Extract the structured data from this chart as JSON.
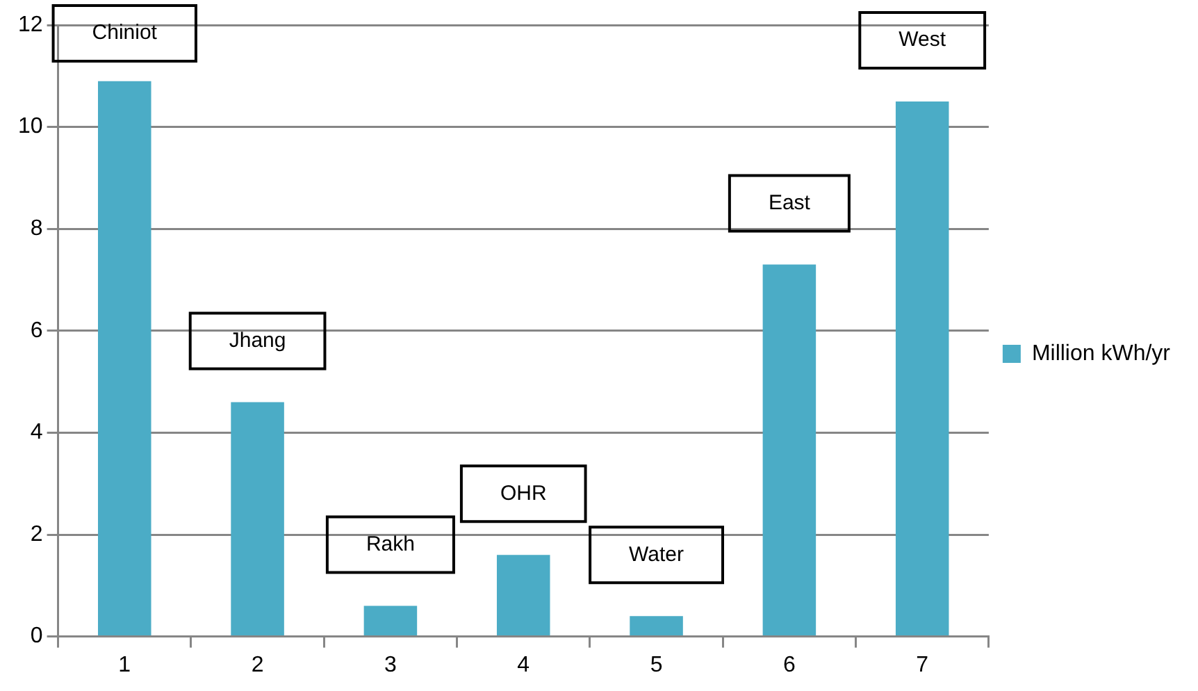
{
  "chart_data": {
    "type": "bar",
    "categories": [
      "1",
      "2",
      "3",
      "4",
      "5",
      "6",
      "7"
    ],
    "series": [
      {
        "name": "Million kWh/yr",
        "color": "#4bacc6",
        "values": [
          10.9,
          4.6,
          0.6,
          1.6,
          0.4,
          7.3,
          10.5
        ]
      }
    ],
    "ylim": [
      0,
      12
    ],
    "yticks": [
      0,
      2,
      4,
      6,
      8,
      10,
      12
    ],
    "grid": "y",
    "legend": "right",
    "annotations": [
      "Chiniot",
      "Jhang",
      "Rakh",
      "OHR",
      "Water",
      "East",
      "West"
    ]
  }
}
